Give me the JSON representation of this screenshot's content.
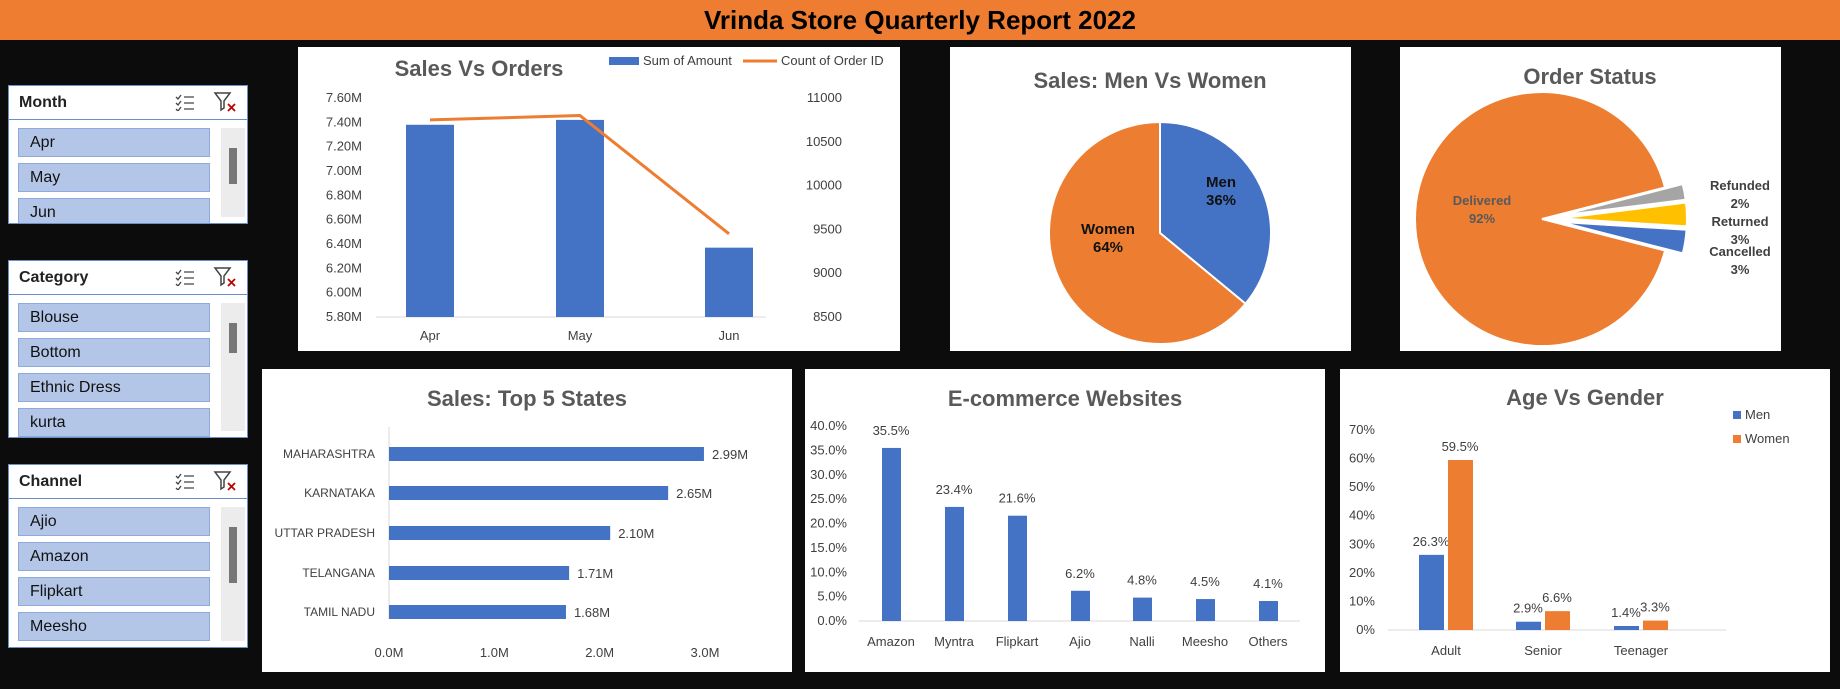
{
  "report_title": "Vrinda Store Quarterly Report 2022",
  "slicers": {
    "month": {
      "title": "Month",
      "items": [
        "Apr",
        "May",
        "Jun"
      ]
    },
    "category": {
      "title": "Category",
      "items": [
        "Blouse",
        "Bottom",
        "Ethnic Dress",
        "kurta"
      ]
    },
    "channel": {
      "title": "Channel",
      "items": [
        "Ajio",
        "Amazon",
        "Flipkart",
        "Meesho"
      ]
    }
  },
  "icons": {
    "multi_select": "multi-select-icon",
    "clear_filter": "clear-filter-icon"
  },
  "colors": {
    "title_bar": "#ee7d31",
    "blue": "#4472c4",
    "orange": "#ed7d31",
    "gray": "#a5a5a5",
    "gold": "#ffc000",
    "slicer_item": "#b4c6e7"
  },
  "chart_data": [
    {
      "type": "bar",
      "title": "Sales Vs Orders",
      "categories": [
        "Apr",
        "May",
        "Jun"
      ],
      "series": [
        {
          "name": "Sum of Amount",
          "type": "bar",
          "axis": "left",
          "values": [
            7.38,
            7.42,
            6.37
          ]
        },
        {
          "name": "Count of Order ID",
          "type": "line",
          "axis": "right",
          "values": [
            10750,
            10800,
            9450
          ]
        }
      ],
      "y_left": {
        "min": 5.8,
        "max": 7.6,
        "step": 0.2,
        "ticks": [
          "5.80M",
          "6.00M",
          "6.20M",
          "6.40M",
          "6.60M",
          "6.80M",
          "7.00M",
          "7.20M",
          "7.40M",
          "7.60M"
        ]
      },
      "y_right": {
        "min": 8500,
        "max": 11000,
        "step": 500,
        "ticks": [
          "8500",
          "9000",
          "9500",
          "10000",
          "10500",
          "11000"
        ]
      },
      "legend": "top-right",
      "grid": false
    },
    {
      "type": "pie",
      "title": "Sales: Men Vs Women",
      "slices": [
        {
          "label": "Men",
          "value": 36,
          "display": "36%"
        },
        {
          "label": "Women",
          "value": 64,
          "display": "64%"
        }
      ]
    },
    {
      "type": "pie",
      "title": "Order Status",
      "slices": [
        {
          "label": "Delivered",
          "value": 92,
          "display": "92%"
        },
        {
          "label": "Refunded",
          "value": 2,
          "display": "2%"
        },
        {
          "label": "Returned",
          "value": 3,
          "display": "3%"
        },
        {
          "label": "Cancelled",
          "value": 3,
          "display": "3%"
        }
      ]
    },
    {
      "type": "bar",
      "orientation": "horizontal",
      "title": "Sales: Top 5 States",
      "categories": [
        "MAHARASHTRA",
        "KARNATAKA",
        "UTTAR PRADESH",
        "TELANGANA",
        "TAMIL NADU"
      ],
      "values": [
        2.99,
        2.65,
        2.1,
        1.71,
        1.68
      ],
      "data_labels": [
        "2.99M",
        "2.65M",
        "2.10M",
        "1.71M",
        "1.68M"
      ],
      "xlim": [
        0,
        3
      ],
      "x_ticks": [
        "0.0M",
        "1.0M",
        "2.0M",
        "3.0M"
      ],
      "grid": false
    },
    {
      "type": "bar",
      "title": "E-commerce Websites",
      "categories": [
        "Amazon",
        "Myntra",
        "Flipkart",
        "Ajio",
        "Nalli",
        "Meesho",
        "Others"
      ],
      "values": [
        35.5,
        23.4,
        21.6,
        6.2,
        4.8,
        4.5,
        4.1
      ],
      "data_labels": [
        "35.5%",
        "23.4%",
        "21.6%",
        "6.2%",
        "4.8%",
        "4.5%",
        "4.1%"
      ],
      "ylim": [
        0,
        40
      ],
      "y_ticks": [
        "0.0%",
        "5.0%",
        "10.0%",
        "15.0%",
        "20.0%",
        "25.0%",
        "30.0%",
        "35.0%",
        "40.0%"
      ],
      "grid": false
    },
    {
      "type": "bar",
      "title": "Age Vs Gender",
      "categories": [
        "Adult",
        "Senior",
        "Teenager"
      ],
      "series": [
        {
          "name": "Men",
          "values": [
            26.3,
            2.9,
            1.4
          ],
          "data_labels": [
            "26.3%",
            "2.9%",
            "1.4%"
          ]
        },
        {
          "name": "Women",
          "values": [
            59.5,
            6.6,
            3.3
          ],
          "data_labels": [
            "59.5%",
            "6.6%",
            "3.3%"
          ]
        }
      ],
      "ylim": [
        0,
        70
      ],
      "y_ticks": [
        "0%",
        "10%",
        "20%",
        "30%",
        "40%",
        "50%",
        "60%",
        "70%"
      ],
      "legend": "top-right",
      "grid": false
    }
  ]
}
